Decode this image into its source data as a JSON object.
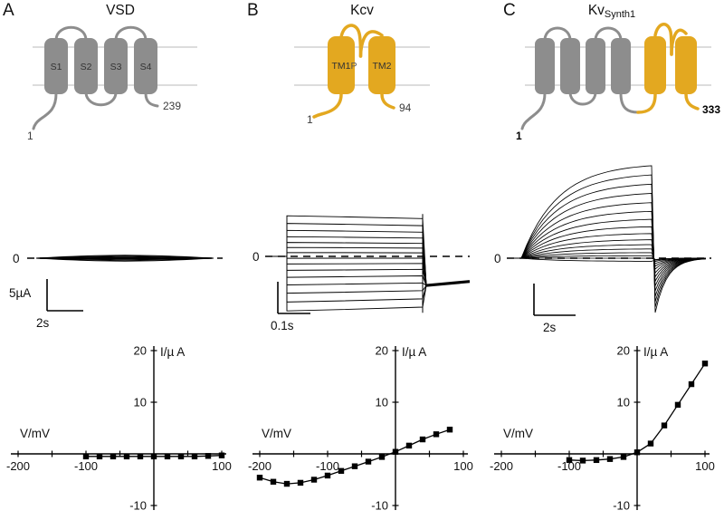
{
  "panelA": {
    "letter": "A",
    "title": "VSD",
    "topology": {
      "segments": [
        "S1",
        "S2",
        "S3",
        "S4"
      ],
      "n_term": "1",
      "c_term": "239"
    },
    "trace": {
      "zero": "0",
      "scale_current": "5µA",
      "scale_time": "2s"
    }
  },
  "panelB": {
    "letter": "B",
    "title": "Kcv",
    "topology": {
      "segments": [
        "TM1",
        "TM2"
      ],
      "pore": "P",
      "n_term": "1",
      "c_term": "94"
    },
    "trace": {
      "zero": "0",
      "scale_time": "0.1s"
    }
  },
  "panelC": {
    "letter": "C",
    "title_main": "Kv",
    "title_sub": "Synth1",
    "topology": {
      "n_term": "1",
      "c_term": "333"
    },
    "trace": {
      "zero": "0",
      "scale_time": "2s"
    }
  },
  "colors": {
    "gray": "#8d8d8d",
    "yellow": "#e3a820",
    "membrane": "#b9b9b9",
    "trace": "#000000"
  },
  "chart_data": [
    {
      "panel": "A",
      "type": "scatter",
      "xlabel": "V/mV",
      "ylabel": "I/µ A",
      "xlim": [
        -200,
        100
      ],
      "ylim": [
        -10,
        20
      ],
      "x": [
        -100,
        -80,
        -60,
        -40,
        -20,
        0,
        20,
        40,
        60,
        80,
        100
      ],
      "y": [
        -0.5,
        -0.5,
        -0.5,
        -0.5,
        -0.5,
        -0.5,
        -0.5,
        -0.5,
        -0.5,
        -0.4,
        -0.3
      ],
      "x_axis_ticks": [
        -200,
        -150,
        -100,
        -50,
        50,
        100
      ],
      "x_labeled_ticks": [
        -200,
        -100,
        100
      ],
      "x_tick_labels": [
        "-200",
        "-100",
        "100"
      ],
      "y_axis_ticks": [
        -10,
        10,
        20
      ],
      "y_tick_labels": [
        "-10",
        "10",
        "20"
      ],
      "marker": "square",
      "line": true
    },
    {
      "panel": "B",
      "type": "scatter",
      "xlabel": "V/mV",
      "ylabel": "I/µ A",
      "xlim": [
        -200,
        100
      ],
      "ylim": [
        -10,
        20
      ],
      "x": [
        -200,
        -180,
        -160,
        -140,
        -120,
        -100,
        -80,
        -60,
        -40,
        -20,
        0,
        20,
        40,
        60,
        80
      ],
      "y": [
        -4.6,
        -5.4,
        -5.8,
        -5.6,
        -5.0,
        -4.2,
        -3.3,
        -2.4,
        -1.5,
        -0.6,
        0.4,
        1.6,
        2.8,
        3.8,
        4.7
      ],
      "x_axis_ticks": [
        -200,
        -150,
        -100,
        -50,
        50,
        100
      ],
      "x_labeled_ticks": [
        -200,
        -100,
        100
      ],
      "x_tick_labels": [
        "-200",
        "-100",
        "100"
      ],
      "y_axis_ticks": [
        -10,
        10,
        20
      ],
      "y_tick_labels": [
        "-10",
        "10",
        "20"
      ],
      "marker": "square",
      "line": true
    },
    {
      "panel": "C",
      "type": "scatter",
      "xlabel": "V/mV",
      "ylabel": "I/µ A",
      "xlim": [
        -200,
        100
      ],
      "ylim": [
        -10,
        20
      ],
      "x": [
        -100,
        -80,
        -60,
        -40,
        -20,
        0,
        20,
        40,
        60,
        80,
        100
      ],
      "y": [
        -1.2,
        -1.3,
        -1.2,
        -1.0,
        -0.6,
        0.3,
        2.0,
        5.5,
        9.5,
        13.5,
        17.5
      ],
      "x_axis_ticks": [
        -200,
        -150,
        -100,
        -50,
        50,
        100
      ],
      "x_labeled_ticks": [
        -200,
        -100,
        100
      ],
      "x_tick_labels": [
        "-200",
        "-100",
        "100"
      ],
      "y_axis_ticks": [
        -10,
        10,
        20
      ],
      "y_tick_labels": [
        "-10",
        "10",
        "20"
      ],
      "marker": "square",
      "line": true
    }
  ],
  "trace_families": {
    "A": {
      "levels_uA": [
        -0.45,
        -0.3,
        -0.15,
        0,
        0.15,
        0.3,
        0.45
      ]
    },
    "B": {
      "levels_uA": [
        6.4,
        5.2,
        4.1,
        3.1,
        2.2,
        1.4,
        0.6,
        -0.3,
        -1.2,
        -2.2,
        -3.3,
        -4.5,
        -5.8,
        -7.2,
        -8.6
      ],
      "tail_uA": -4.6
    },
    "C": {
      "levels_uA": [
        15,
        13.5,
        12,
        10.5,
        9,
        7.6,
        6.3,
        5.1,
        4.0,
        3.0,
        2.2,
        1.5,
        0.9,
        0.4,
        0,
        -0.5
      ]
    }
  }
}
